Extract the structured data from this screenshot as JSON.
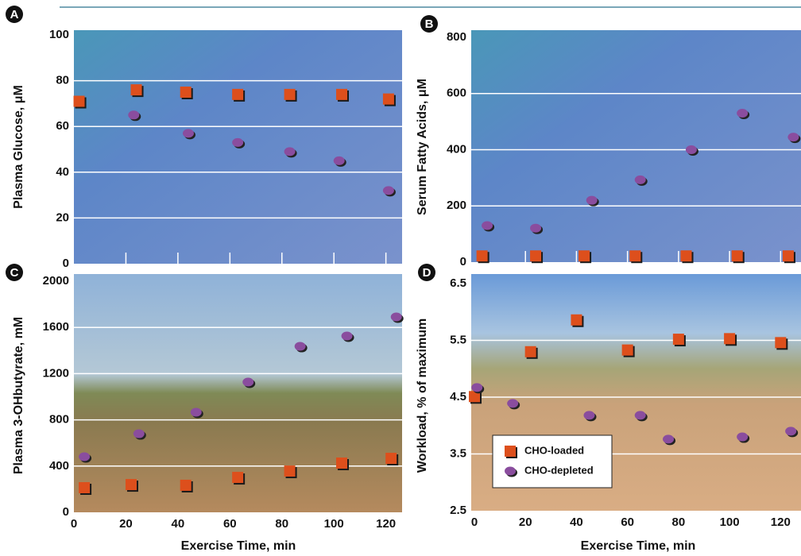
{
  "chart_data": [
    {
      "type": "scatter",
      "label": "A",
      "ylabel": "Plasma Glucose, μM",
      "xlim": [
        0,
        125
      ],
      "xticks": [
        0,
        20,
        40,
        60,
        80,
        100,
        120
      ],
      "xtick_labels": false,
      "ylim": [
        0,
        100
      ],
      "yticks": [
        0,
        20,
        40,
        60,
        80,
        100
      ],
      "grid": true,
      "series": [
        {
          "color": "#dd4f1c",
          "marker": "square",
          "x": [
            2,
            24,
            43,
            63,
            83,
            103,
            121
          ],
          "values": [
            71,
            76,
            75,
            74,
            74,
            74,
            72
          ]
        },
        {
          "color": "#8a4d9e",
          "marker": "circle",
          "x": [
            23,
            44,
            63,
            83,
            102,
            121
          ],
          "values": [
            65,
            57,
            53,
            49,
            45,
            32
          ]
        }
      ]
    },
    {
      "type": "scatter",
      "label": "B",
      "ylabel": "Serum Fatty Acids, μM",
      "xlim": [
        0,
        128
      ],
      "xticks": [
        0,
        20,
        40,
        60,
        80,
        100,
        120
      ],
      "xtick_labels": false,
      "ylim": [
        0,
        800
      ],
      "yticks": [
        0,
        200,
        400,
        600,
        800
      ],
      "grid": true,
      "series": [
        {
          "color": "#dd4f1c",
          "marker": "square",
          "x": [
            3,
            24,
            43,
            63,
            83,
            103,
            123
          ],
          "values": [
            22,
            22,
            22,
            22,
            22,
            22,
            22
          ]
        },
        {
          "color": "#8a4d9e",
          "marker": "circle",
          "x": [
            5,
            24,
            46,
            65,
            85,
            105,
            125
          ],
          "values": [
            130,
            121,
            220,
            293,
            400,
            530,
            445
          ]
        }
      ]
    },
    {
      "type": "scatter",
      "label": "C",
      "ylabel": "Plasma 3-OHbutyrate, mM",
      "xlabel": "Exercise Time, min",
      "xlim": [
        0,
        125
      ],
      "xticks": [
        0,
        20,
        40,
        60,
        80,
        100,
        120
      ],
      "xtick_labels": true,
      "ylim": [
        0,
        2000
      ],
      "yticks": [
        0,
        400,
        800,
        1200,
        1600,
        2000
      ],
      "grid": true,
      "series": [
        {
          "color": "#dd4f1c",
          "marker": "square",
          "x": [
            4,
            22,
            43,
            63,
            83,
            103,
            122
          ],
          "values": [
            213,
            240,
            234,
            302,
            357,
            426,
            467
          ]
        },
        {
          "color": "#8a4d9e",
          "marker": "circle",
          "x": [
            4,
            25,
            47,
            67,
            87,
            105,
            124
          ],
          "values": [
            481,
            680,
            866,
            1127,
            1436,
            1526,
            1691
          ]
        }
      ]
    },
    {
      "type": "scatter",
      "label": "D",
      "ylabel": "Workload, % of maximum",
      "xlabel": "Exercise Time, min",
      "xlim": [
        0,
        128
      ],
      "xticks": [
        0,
        20,
        40,
        60,
        80,
        100,
        120
      ],
      "xtick_labels": true,
      "ylim": [
        2.5,
        6.5
      ],
      "yticks": [
        2.5,
        3.5,
        4.5,
        5.5,
        6.5
      ],
      "grid": true,
      "legend": "lower-left",
      "series": [
        {
          "name": "CHO-loaded",
          "color": "#dd4f1c",
          "marker": "square",
          "x": [
            0,
            22,
            40,
            60,
            80,
            100,
            120
          ],
          "values": [
            4.51,
            5.3,
            5.86,
            5.33,
            5.52,
            5.53,
            5.46
          ]
        },
        {
          "name": "CHO-depleted",
          "color": "#8a4d9e",
          "marker": "circle",
          "x": [
            1,
            15,
            45,
            65,
            76,
            105,
            124
          ],
          "values": [
            4.67,
            4.39,
            4.18,
            4.18,
            3.76,
            3.8,
            3.9
          ]
        }
      ]
    }
  ]
}
